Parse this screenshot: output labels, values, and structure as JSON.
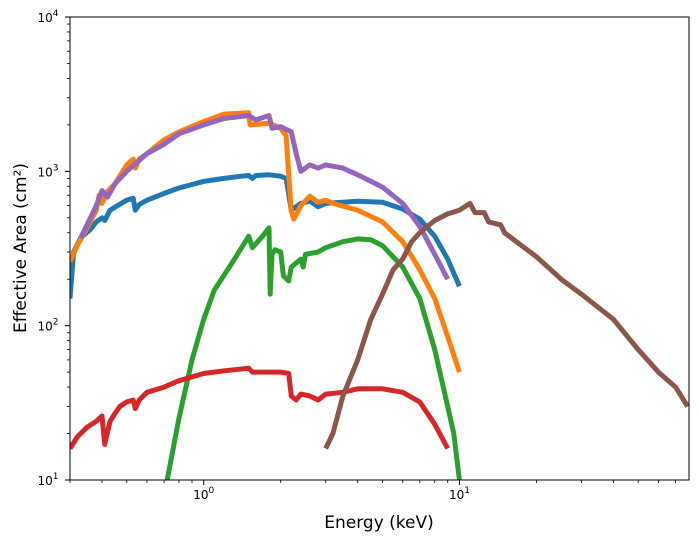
{
  "chart_data": {
    "type": "line",
    "title": "",
    "xlabel": "Energy (keV)",
    "ylabel": "Effective Area (cm²)",
    "xscale": "log",
    "yscale": "log",
    "xlim": [
      0.3,
      79
    ],
    "ylim": [
      10,
      10000
    ],
    "grid": false,
    "legend": "none",
    "x_ticks": [
      {
        "value": 1,
        "base": "10",
        "exp": "0"
      },
      {
        "value": 10,
        "base": "10",
        "exp": "1"
      }
    ],
    "y_ticks": [
      {
        "value": 10,
        "base": "10",
        "exp": "1"
      },
      {
        "value": 100,
        "base": "10",
        "exp": "2"
      },
      {
        "value": 1000,
        "base": "10",
        "exp": "3"
      },
      {
        "value": 10000,
        "base": "10",
        "exp": "4"
      }
    ],
    "series": [
      {
        "name": "blue",
        "color": "#1f77b4",
        "points": [
          [
            0.3,
            150
          ],
          [
            0.31,
            300
          ],
          [
            0.33,
            370
          ],
          [
            0.36,
            420
          ],
          [
            0.38,
            470
          ],
          [
            0.4,
            500
          ],
          [
            0.41,
            480
          ],
          [
            0.43,
            560
          ],
          [
            0.46,
            600
          ],
          [
            0.5,
            650
          ],
          [
            0.53,
            670
          ],
          [
            0.54,
            560
          ],
          [
            0.56,
            610
          ],
          [
            0.6,
            650
          ],
          [
            0.7,
            720
          ],
          [
            0.8,
            780
          ],
          [
            1.0,
            860
          ],
          [
            1.2,
            900
          ],
          [
            1.4,
            930
          ],
          [
            1.5,
            940
          ],
          [
            1.55,
            900
          ],
          [
            1.6,
            940
          ],
          [
            1.8,
            950
          ],
          [
            2.0,
            930
          ],
          [
            2.1,
            900
          ],
          [
            2.2,
            560
          ],
          [
            2.3,
            590
          ],
          [
            2.4,
            620
          ],
          [
            2.6,
            640
          ],
          [
            2.8,
            590
          ],
          [
            3.0,
            620
          ],
          [
            4.0,
            640
          ],
          [
            5.0,
            630
          ],
          [
            6.0,
            570
          ],
          [
            7.0,
            490
          ],
          [
            8.0,
            380
          ],
          [
            9.0,
            270
          ],
          [
            10.0,
            180
          ]
        ]
      },
      {
        "name": "orange",
        "color": "#ff7f0e",
        "points": [
          [
            0.3,
            260
          ],
          [
            0.32,
            330
          ],
          [
            0.35,
            430
          ],
          [
            0.38,
            560
          ],
          [
            0.39,
            700
          ],
          [
            0.4,
            620
          ],
          [
            0.42,
            740
          ],
          [
            0.45,
            830
          ],
          [
            0.5,
            1100
          ],
          [
            0.53,
            1200
          ],
          [
            0.54,
            1050
          ],
          [
            0.56,
            1200
          ],
          [
            0.6,
            1300
          ],
          [
            0.7,
            1600
          ],
          [
            0.8,
            1800
          ],
          [
            1.0,
            2100
          ],
          [
            1.2,
            2350
          ],
          [
            1.5,
            2400
          ],
          [
            1.52,
            2000
          ],
          [
            1.8,
            2050
          ],
          [
            2.0,
            1900
          ],
          [
            2.1,
            1700
          ],
          [
            2.2,
            550
          ],
          [
            2.25,
            490
          ],
          [
            2.4,
            600
          ],
          [
            2.6,
            690
          ],
          [
            2.8,
            630
          ],
          [
            3.0,
            650
          ],
          [
            3.2,
            620
          ],
          [
            4.0,
            560
          ],
          [
            5.0,
            470
          ],
          [
            6.0,
            350
          ],
          [
            7.0,
            230
          ],
          [
            8.0,
            150
          ],
          [
            9.0,
            85
          ],
          [
            10.0,
            50
          ]
        ]
      },
      {
        "name": "green",
        "color": "#2ca02c",
        "points": [
          [
            0.72,
            10
          ],
          [
            0.8,
            25
          ],
          [
            0.9,
            60
          ],
          [
            1.0,
            110
          ],
          [
            1.1,
            170
          ],
          [
            1.3,
            260
          ],
          [
            1.5,
            380
          ],
          [
            1.55,
            320
          ],
          [
            1.7,
            380
          ],
          [
            1.8,
            430
          ],
          [
            1.82,
            160
          ],
          [
            1.85,
            290
          ],
          [
            1.9,
            310
          ],
          [
            2.0,
            300
          ],
          [
            2.05,
            210
          ],
          [
            2.15,
            195
          ],
          [
            2.2,
            240
          ],
          [
            2.4,
            270
          ],
          [
            2.45,
            240
          ],
          [
            2.5,
            290
          ],
          [
            2.8,
            300
          ],
          [
            3.0,
            320
          ],
          [
            3.5,
            350
          ],
          [
            4.0,
            365
          ],
          [
            4.5,
            360
          ],
          [
            5.0,
            330
          ],
          [
            6.0,
            240
          ],
          [
            7.0,
            150
          ],
          [
            8.0,
            70
          ],
          [
            9.0,
            30
          ],
          [
            9.5,
            20
          ],
          [
            10.0,
            10
          ]
        ]
      },
      {
        "name": "red",
        "color": "#d62728",
        "points": [
          [
            0.3,
            16
          ],
          [
            0.32,
            19
          ],
          [
            0.35,
            22
          ],
          [
            0.38,
            24
          ],
          [
            0.4,
            26
          ],
          [
            0.41,
            17
          ],
          [
            0.43,
            24
          ],
          [
            0.45,
            27
          ],
          [
            0.47,
            30
          ],
          [
            0.5,
            32
          ],
          [
            0.53,
            33
          ],
          [
            0.54,
            29
          ],
          [
            0.56,
            33
          ],
          [
            0.6,
            37
          ],
          [
            0.7,
            40
          ],
          [
            0.8,
            44
          ],
          [
            1.0,
            49
          ],
          [
            1.2,
            51
          ],
          [
            1.5,
            53
          ],
          [
            1.55,
            50
          ],
          [
            2.0,
            50
          ],
          [
            2.15,
            49
          ],
          [
            2.2,
            35
          ],
          [
            2.3,
            33
          ],
          [
            2.4,
            36
          ],
          [
            2.6,
            35
          ],
          [
            2.8,
            33
          ],
          [
            3.0,
            36
          ],
          [
            3.5,
            37
          ],
          [
            4.0,
            39
          ],
          [
            5.0,
            39
          ],
          [
            6.0,
            37
          ],
          [
            7.0,
            32
          ],
          [
            8.0,
            23
          ],
          [
            9.0,
            16
          ]
        ]
      },
      {
        "name": "purple",
        "color": "#9467bd",
        "points": [
          [
            0.33,
            370
          ],
          [
            0.35,
            450
          ],
          [
            0.38,
            600
          ],
          [
            0.4,
            750
          ],
          [
            0.42,
            680
          ],
          [
            0.45,
            830
          ],
          [
            0.5,
            1000
          ],
          [
            0.55,
            1150
          ],
          [
            0.6,
            1300
          ],
          [
            0.7,
            1500
          ],
          [
            0.8,
            1750
          ],
          [
            1.0,
            2000
          ],
          [
            1.2,
            2200
          ],
          [
            1.5,
            2300
          ],
          [
            1.6,
            2150
          ],
          [
            1.8,
            2300
          ],
          [
            1.85,
            1900
          ],
          [
            2.0,
            1950
          ],
          [
            2.2,
            1800
          ],
          [
            2.3,
            1300
          ],
          [
            2.4,
            1000
          ],
          [
            2.6,
            1100
          ],
          [
            2.8,
            1050
          ],
          [
            3.0,
            1100
          ],
          [
            3.5,
            1050
          ],
          [
            4.0,
            950
          ],
          [
            5.0,
            790
          ],
          [
            6.0,
            620
          ],
          [
            7.0,
            440
          ],
          [
            8.0,
            290
          ],
          [
            9.0,
            200
          ]
        ]
      },
      {
        "name": "brown",
        "color": "#8c564b",
        "points": [
          [
            3.0,
            16
          ],
          [
            3.2,
            20
          ],
          [
            3.5,
            35
          ],
          [
            4.0,
            60
          ],
          [
            4.5,
            110
          ],
          [
            5.0,
            160
          ],
          [
            5.5,
            230
          ],
          [
            6.0,
            270
          ],
          [
            6.5,
            350
          ],
          [
            7.0,
            400
          ],
          [
            8.0,
            480
          ],
          [
            9.0,
            530
          ],
          [
            10.0,
            560
          ],
          [
            11.0,
            620
          ],
          [
            11.5,
            540
          ],
          [
            12.5,
            540
          ],
          [
            13.0,
            470
          ],
          [
            14.5,
            450
          ],
          [
            15.0,
            400
          ],
          [
            20.0,
            280
          ],
          [
            25.0,
            200
          ],
          [
            30.0,
            160
          ],
          [
            40.0,
            110
          ],
          [
            50.0,
            70
          ],
          [
            60.0,
            50
          ],
          [
            70.0,
            40
          ],
          [
            78.0,
            30
          ]
        ]
      }
    ]
  }
}
